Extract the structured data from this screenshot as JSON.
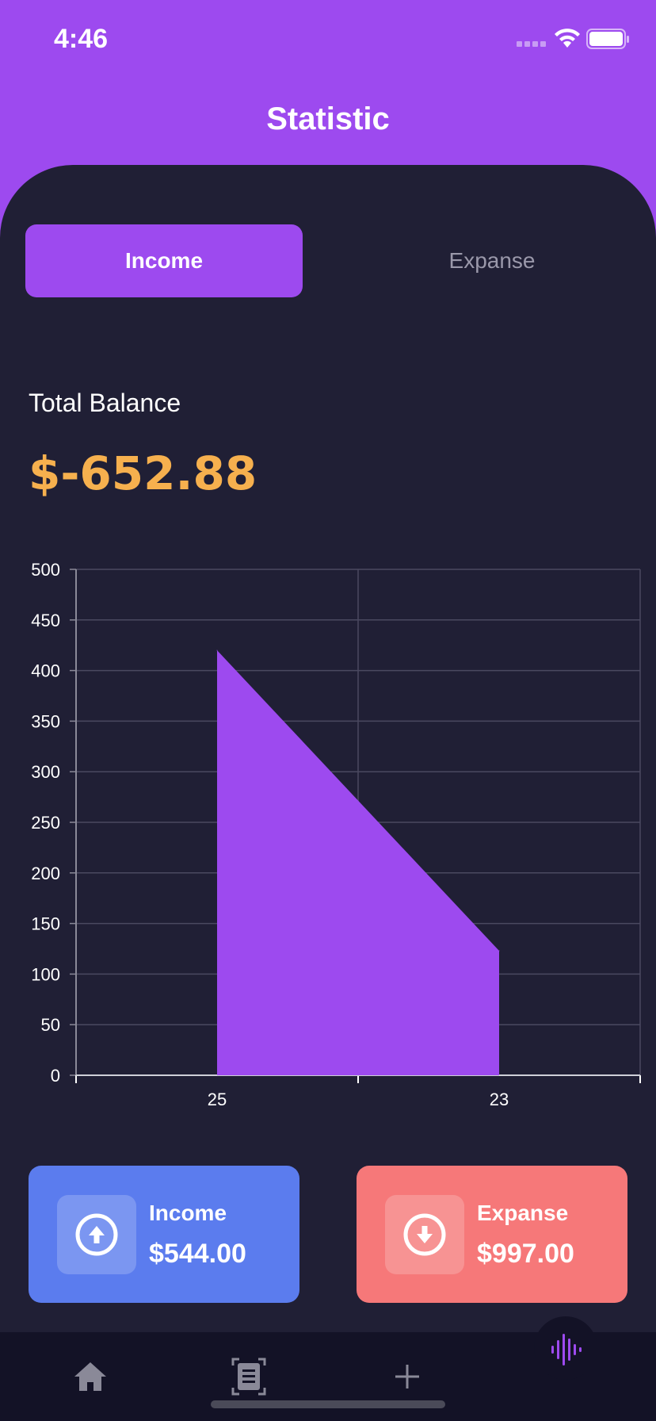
{
  "status_bar": {
    "time": "4:46"
  },
  "header": {
    "title": "Statistic"
  },
  "tabs": [
    {
      "label": "Income",
      "active": true
    },
    {
      "label": "Expanse",
      "active": false
    }
  ],
  "balance": {
    "label": "Total Balance",
    "value": "$-652.88"
  },
  "chart_data": {
    "type": "area",
    "title": "",
    "xlabel": "",
    "ylabel": "",
    "categories": [
      "25",
      "23"
    ],
    "values": [
      420,
      123
    ],
    "ylim": [
      0,
      500
    ],
    "yticks": [
      "0",
      "50",
      "100",
      "150",
      "200",
      "250",
      "300",
      "350",
      "400",
      "450",
      "500"
    ],
    "grid": true,
    "color": "#9d4aef"
  },
  "cards": {
    "income": {
      "label": "Income",
      "amount": "$544.00",
      "color": "#5b7cee",
      "icon": "arrow-up-circle-icon"
    },
    "expanse": {
      "label": "Expanse",
      "amount": "$997.00",
      "color": "#f67879",
      "icon": "arrow-down-circle-icon"
    }
  },
  "nav": {
    "items": [
      {
        "icon": "home-icon"
      },
      {
        "icon": "document-scan-icon"
      },
      {
        "icon": "plus-icon"
      },
      {
        "icon": "audio-wave-icon",
        "active": true
      }
    ]
  },
  "colors": {
    "accent": "#9d4aef",
    "background": "#201f35",
    "balance": "#f6b04e"
  }
}
